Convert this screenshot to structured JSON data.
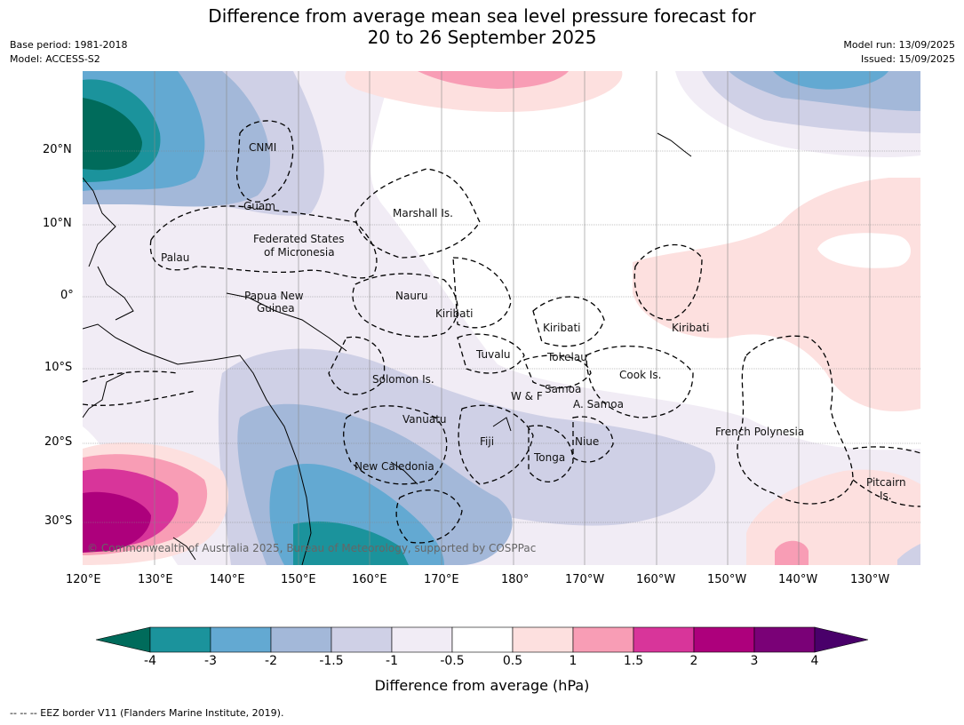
{
  "title_line1": "Difference from average mean sea level pressure forecast for",
  "title_line2": "20 to 26 September 2025",
  "meta_left": [
    "Base period: 1981-2018",
    "Model: ACCESS-S2"
  ],
  "meta_right": [
    "Model run: 13/09/2025",
    "Issued: 15/09/2025"
  ],
  "map": {
    "lon_ticks": [
      "120°E",
      "130°E",
      "140°E",
      "150°E",
      "160°E",
      "170°E",
      "180°",
      "170°W",
      "160°W",
      "150°W",
      "140°W",
      "130°W"
    ],
    "lat_ticks": [
      "20°N",
      "10°N",
      "0°",
      "10°S",
      "20°S",
      "30°S"
    ],
    "places": [
      {
        "text": "CNMI"
      },
      {
        "text": "Guam"
      },
      {
        "text": "Marshall Is."
      },
      {
        "text": "Federated States"
      },
      {
        "text": "of Micronesia"
      },
      {
        "text": "Palau"
      },
      {
        "text": "Papua New"
      },
      {
        "text": "Guinea"
      },
      {
        "text": "Nauru"
      },
      {
        "text": "Kiribati"
      },
      {
        "text": "Kiribati"
      },
      {
        "text": "Kiribati"
      },
      {
        "text": "Tuvalu"
      },
      {
        "text": "Tokelau"
      },
      {
        "text": "Solomon Is."
      },
      {
        "text": "Cook Is."
      },
      {
        "text": "Samoa"
      },
      {
        "text": "W & F"
      },
      {
        "text": "A. Samoa"
      },
      {
        "text": "Vanuatu"
      },
      {
        "text": "Fiji"
      },
      {
        "text": "Niue"
      },
      {
        "text": "French Polynesia"
      },
      {
        "text": "Tonga"
      },
      {
        "text": "New Caledonia"
      },
      {
        "text": "Pitcairn"
      },
      {
        "text": "Is."
      }
    ],
    "copyright": "© Commonwealth of Australia 2025, Bureau of Meteorology, supported by COSPPac"
  },
  "colorbar": {
    "ticks": [
      "-4",
      "-3",
      "-2",
      "-1.5",
      "-1",
      "-0.5",
      "0.5",
      "1",
      "1.5",
      "2",
      "3",
      "4"
    ],
    "colors": [
      "#006b5b",
      "#1b939c",
      "#63a9d2",
      "#a3b8d9",
      "#cfd0e6",
      "#f1ecf5",
      "#ffffff",
      "#fde0df",
      "#f89db5",
      "#d8359a",
      "#ad007c",
      "#7a0177",
      "#49006a"
    ],
    "label": "Difference from average (hPa)"
  },
  "footnote": "--  --  -- EEZ border V11 (Flanders Marine Institute, 2019)."
}
